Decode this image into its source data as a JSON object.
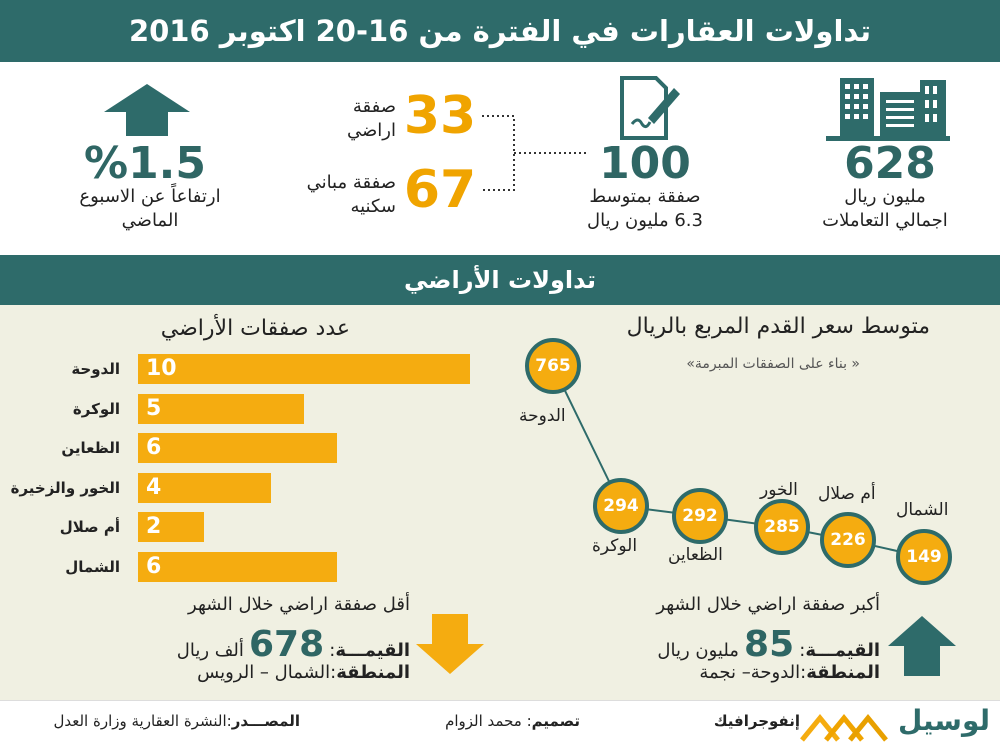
{
  "header": {
    "title": "تداولات العقارات في الفترة من 16-20 اكتوبر 2016"
  },
  "stats": {
    "total": {
      "value": "628",
      "line1": "مليون ريال",
      "line2": "اجمالي التعاملات"
    },
    "deals": {
      "value": "100",
      "line1": "صفقة بمتوسط",
      "line2": "6.3  مليون ريال"
    },
    "land": {
      "value": "33",
      "line1": "صفقة",
      "line2": "اراضي"
    },
    "buildings": {
      "value": "67",
      "line1": "صفقة مباني",
      "line2": "سكنيه"
    },
    "rise": {
      "value": "%1.5",
      "line1": "ارتفاعاً عن الاسبوع",
      "line2": "الماضي"
    }
  },
  "section2": {
    "title": "تداولات الأراضي"
  },
  "colors": {
    "teal": "#2e6b6a",
    "orange": "#f5ac10"
  },
  "chart_data": [
    {
      "type": "bar",
      "title": "عدد صفقات الأراضي",
      "categories": [
        "الدوحة",
        "الوكرة",
        "الظعاين",
        "الخور والزخيرة",
        "أم صلال",
        "الشمال"
      ],
      "values": [
        10,
        5,
        6,
        4,
        2,
        6
      ]
    },
    {
      "type": "scatter",
      "title": "متوسط سعر القدم المربع بالريال",
      "subtitle": "« بناء على الصفقات المبرمة»",
      "categories": [
        "الدوحة",
        "الوكرة",
        "الظعاين",
        "الخور",
        "أم صلال",
        "الشمال"
      ],
      "values": [
        765,
        294,
        292,
        285,
        226,
        149
      ]
    }
  ],
  "largest": {
    "title": "أكبر صفقة اراضي خلال الشهر",
    "value_label": "القيمـــة",
    "value": "85",
    "unit": "مليون ريال",
    "region_label": "المنطقة",
    "region": "الدوحة– نجمة"
  },
  "smallest": {
    "title": "أقل صفقة اراضي خلال الشهر",
    "value_label": "القيمـــة",
    "value": "678",
    "unit": "ألف ريال",
    "region_label": "المنطقة",
    "region": "الشمال – الرويس"
  },
  "footer": {
    "logo": "لوسيل",
    "brand": "إنفوجرافيك",
    "design_label": "تصميم",
    "designer": "محمد الزوام",
    "source_label": "المصـــدر",
    "source": "النشرة العقارية وزارة العدل"
  }
}
